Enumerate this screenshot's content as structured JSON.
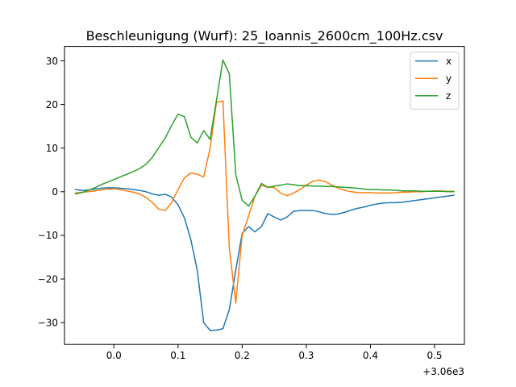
{
  "chart_data": {
    "type": "line",
    "title": "Beschleunigung (Wurf): 25_Ioannis_2600cm_100Hz.csv",
    "xlabel": "",
    "ylabel": "",
    "x_offset_label": "+3.06e3",
    "xlim": [
      -0.077,
      0.5465
    ],
    "ylim": [
      -35.0,
      33.3
    ],
    "x_ticks": [
      0.0,
      0.1,
      0.2,
      0.3,
      0.4,
      0.5
    ],
    "x_tick_labels": [
      "0.0",
      "0.1",
      "0.2",
      "0.3",
      "0.4",
      "0.5"
    ],
    "y_ticks": [
      -30,
      -20,
      -10,
      0,
      10,
      20,
      30
    ],
    "y_tick_labels": [
      "−30",
      "−20",
      "−10",
      "0",
      "10",
      "20",
      "30"
    ],
    "grid": false,
    "legend_position": "top-right",
    "x": [
      -0.06,
      -0.05,
      -0.04,
      -0.03,
      -0.02,
      -0.01,
      0.0,
      0.01,
      0.02,
      0.03,
      0.04,
      0.05,
      0.06,
      0.07,
      0.08,
      0.09,
      0.1,
      0.11,
      0.12,
      0.13,
      0.14,
      0.15,
      0.16,
      0.17,
      0.18,
      0.19,
      0.2,
      0.21,
      0.22,
      0.23,
      0.24,
      0.25,
      0.26,
      0.27,
      0.28,
      0.29,
      0.3,
      0.31,
      0.32,
      0.33,
      0.34,
      0.35,
      0.36,
      0.37,
      0.38,
      0.39,
      0.4,
      0.41,
      0.42,
      0.43,
      0.44,
      0.45,
      0.46,
      0.47,
      0.48,
      0.49,
      0.5,
      0.51,
      0.52,
      0.53
    ],
    "series": [
      {
        "name": "x",
        "color": "#1f77b4",
        "values": [
          0.5,
          0.3,
          0.4,
          0.6,
          0.8,
          0.9,
          0.9,
          0.8,
          0.7,
          0.5,
          0.3,
          0.0,
          -0.5,
          -0.8,
          -0.6,
          -1.2,
          -3.0,
          -6.0,
          -11.0,
          -18.0,
          -30.0,
          -31.8,
          -31.7,
          -31.4,
          -27.0,
          -18.0,
          -9.5,
          -8.0,
          -9.2,
          -8.0,
          -5.0,
          -5.8,
          -6.5,
          -5.8,
          -4.5,
          -4.3,
          -4.3,
          -4.3,
          -4.6,
          -5.0,
          -5.2,
          -5.1,
          -4.7,
          -4.2,
          -3.8,
          -3.5,
          -3.1,
          -2.8,
          -2.6,
          -2.5,
          -2.5,
          -2.4,
          -2.2,
          -2.0,
          -1.8,
          -1.6,
          -1.4,
          -1.2,
          -1.0,
          -0.8
        ]
      },
      {
        "name": "y",
        "color": "#ff7f0e",
        "values": [
          -0.3,
          -0.1,
          0.0,
          0.2,
          0.4,
          0.6,
          0.7,
          0.5,
          0.2,
          -0.1,
          -0.5,
          -1.3,
          -2.5,
          -4.0,
          -4.3,
          -2.5,
          0.5,
          3.2,
          4.3,
          4.0,
          3.4,
          10.0,
          20.5,
          20.8,
          -13.0,
          -25.5,
          -10.0,
          -5.5,
          -1.0,
          1.5,
          1.0,
          1.0,
          -0.3,
          -0.9,
          -0.3,
          0.5,
          1.5,
          2.4,
          2.7,
          2.3,
          1.5,
          0.8,
          0.3,
          0.0,
          -0.2,
          -0.2,
          -0.2,
          -0.3,
          -0.3,
          -0.3,
          -0.2,
          -0.1,
          -0.1,
          0.0,
          0.0,
          0.1,
          0.2,
          0.2,
          0.1,
          0.1
        ]
      },
      {
        "name": "z",
        "color": "#2ca02c",
        "values": [
          -0.5,
          -0.2,
          0.3,
          0.9,
          1.6,
          2.2,
          2.8,
          3.4,
          4.0,
          4.6,
          5.3,
          6.3,
          7.9,
          10.1,
          12.3,
          15.2,
          17.8,
          17.2,
          12.5,
          11.2,
          14.0,
          12.0,
          21.0,
          30.2,
          27.0,
          4.0,
          -2.0,
          -3.3,
          -1.0,
          1.9,
          1.0,
          1.3,
          1.5,
          1.8,
          1.6,
          1.4,
          1.4,
          1.3,
          1.3,
          1.2,
          1.2,
          1.1,
          1.0,
          0.9,
          0.8,
          0.6,
          0.5,
          0.5,
          0.4,
          0.4,
          0.3,
          0.2,
          0.2,
          0.2,
          0.1,
          0.1,
          0.1,
          0.1,
          0.0,
          0.0
        ]
      }
    ]
  }
}
